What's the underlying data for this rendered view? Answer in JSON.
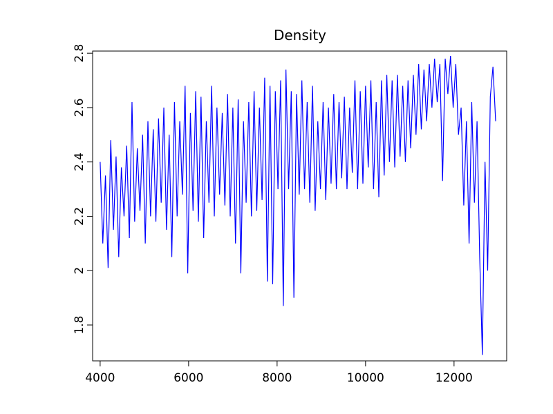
{
  "chart_data": {
    "type": "line",
    "title": "Density",
    "x": [
      4000,
      4060,
      4120,
      4180,
      4240,
      4300,
      4360,
      4420,
      4480,
      4540,
      4600,
      4660,
      4720,
      4780,
      4840,
      4900,
      4960,
      5020,
      5080,
      5140,
      5200,
      5260,
      5320,
      5380,
      5440,
      5500,
      5560,
      5620,
      5680,
      5740,
      5800,
      5860,
      5920,
      5980,
      6040,
      6100,
      6160,
      6220,
      6280,
      6340,
      6400,
      6460,
      6520,
      6580,
      6640,
      6700,
      6760,
      6820,
      6880,
      6940,
      7000,
      7060,
      7120,
      7180,
      7240,
      7300,
      7360,
      7420,
      7480,
      7540,
      7600,
      7660,
      7720,
      7780,
      7840,
      7900,
      7960,
      8020,
      8080,
      8140,
      8200,
      8260,
      8320,
      8380,
      8440,
      8500,
      8560,
      8620,
      8680,
      8740,
      8800,
      8860,
      8920,
      8980,
      9040,
      9100,
      9160,
      9220,
      9280,
      9340,
      9400,
      9460,
      9520,
      9580,
      9640,
      9700,
      9760,
      9820,
      9880,
      9940,
      10000,
      10060,
      10120,
      10180,
      10240,
      10300,
      10360,
      10420,
      10480,
      10540,
      10600,
      10660,
      10720,
      10780,
      10840,
      10900,
      10960,
      11020,
      11080,
      11140,
      11200,
      11260,
      11320,
      11380,
      11440,
      11500,
      11560,
      11620,
      11680,
      11740,
      11800,
      11860,
      11920,
      11980,
      12040,
      12100,
      12160,
      12220,
      12280,
      12340,
      12400,
      12460,
      12520,
      12580,
      12640,
      12700,
      12760,
      12820,
      12880,
      12940
    ],
    "series": [
      {
        "name": "Density",
        "color": "#0000ff",
        "values": [
          2.4,
          2.1,
          2.35,
          2.01,
          2.48,
          2.15,
          2.42,
          2.05,
          2.38,
          2.2,
          2.46,
          2.12,
          2.62,
          2.18,
          2.45,
          2.22,
          2.5,
          2.1,
          2.55,
          2.2,
          2.52,
          2.18,
          2.56,
          2.25,
          2.6,
          2.15,
          2.5,
          2.05,
          2.62,
          2.2,
          2.55,
          2.28,
          2.68,
          1.99,
          2.58,
          2.22,
          2.66,
          2.18,
          2.64,
          2.12,
          2.55,
          2.25,
          2.68,
          2.2,
          2.6,
          2.28,
          2.58,
          2.24,
          2.65,
          2.2,
          2.6,
          2.1,
          2.63,
          1.99,
          2.55,
          2.25,
          2.62,
          2.2,
          2.66,
          2.22,
          2.6,
          2.26,
          2.71,
          1.96,
          2.68,
          1.95,
          2.66,
          2.3,
          2.7,
          1.87,
          2.74,
          2.3,
          2.66,
          1.9,
          2.65,
          2.28,
          2.7,
          2.3,
          2.62,
          2.25,
          2.68,
          2.22,
          2.55,
          2.3,
          2.62,
          2.26,
          2.6,
          2.32,
          2.65,
          2.3,
          2.62,
          2.34,
          2.64,
          2.3,
          2.6,
          2.36,
          2.7,
          2.3,
          2.66,
          2.32,
          2.68,
          2.38,
          2.7,
          2.3,
          2.62,
          2.27,
          2.7,
          2.35,
          2.72,
          2.4,
          2.7,
          2.38,
          2.72,
          2.42,
          2.68,
          2.4,
          2.7,
          2.45,
          2.72,
          2.5,
          2.76,
          2.52,
          2.74,
          2.55,
          2.76,
          2.6,
          2.78,
          2.62,
          2.76,
          2.33,
          2.78,
          2.65,
          2.79,
          2.6,
          2.76,
          2.5,
          2.6,
          2.24,
          2.55,
          2.1,
          2.62,
          2.25,
          2.55,
          2.05,
          1.69,
          2.4,
          2.0,
          2.64,
          2.75,
          2.55
        ]
      }
    ],
    "xlim": [
      3830,
      13190
    ],
    "xticks": [
      4000,
      6000,
      8000,
      10000,
      12000
    ],
    "ylim": [
      1.668,
      2.808
    ],
    "yticks": [
      1.8,
      2,
      2.2,
      2.4,
      2.6,
      2.8
    ]
  }
}
